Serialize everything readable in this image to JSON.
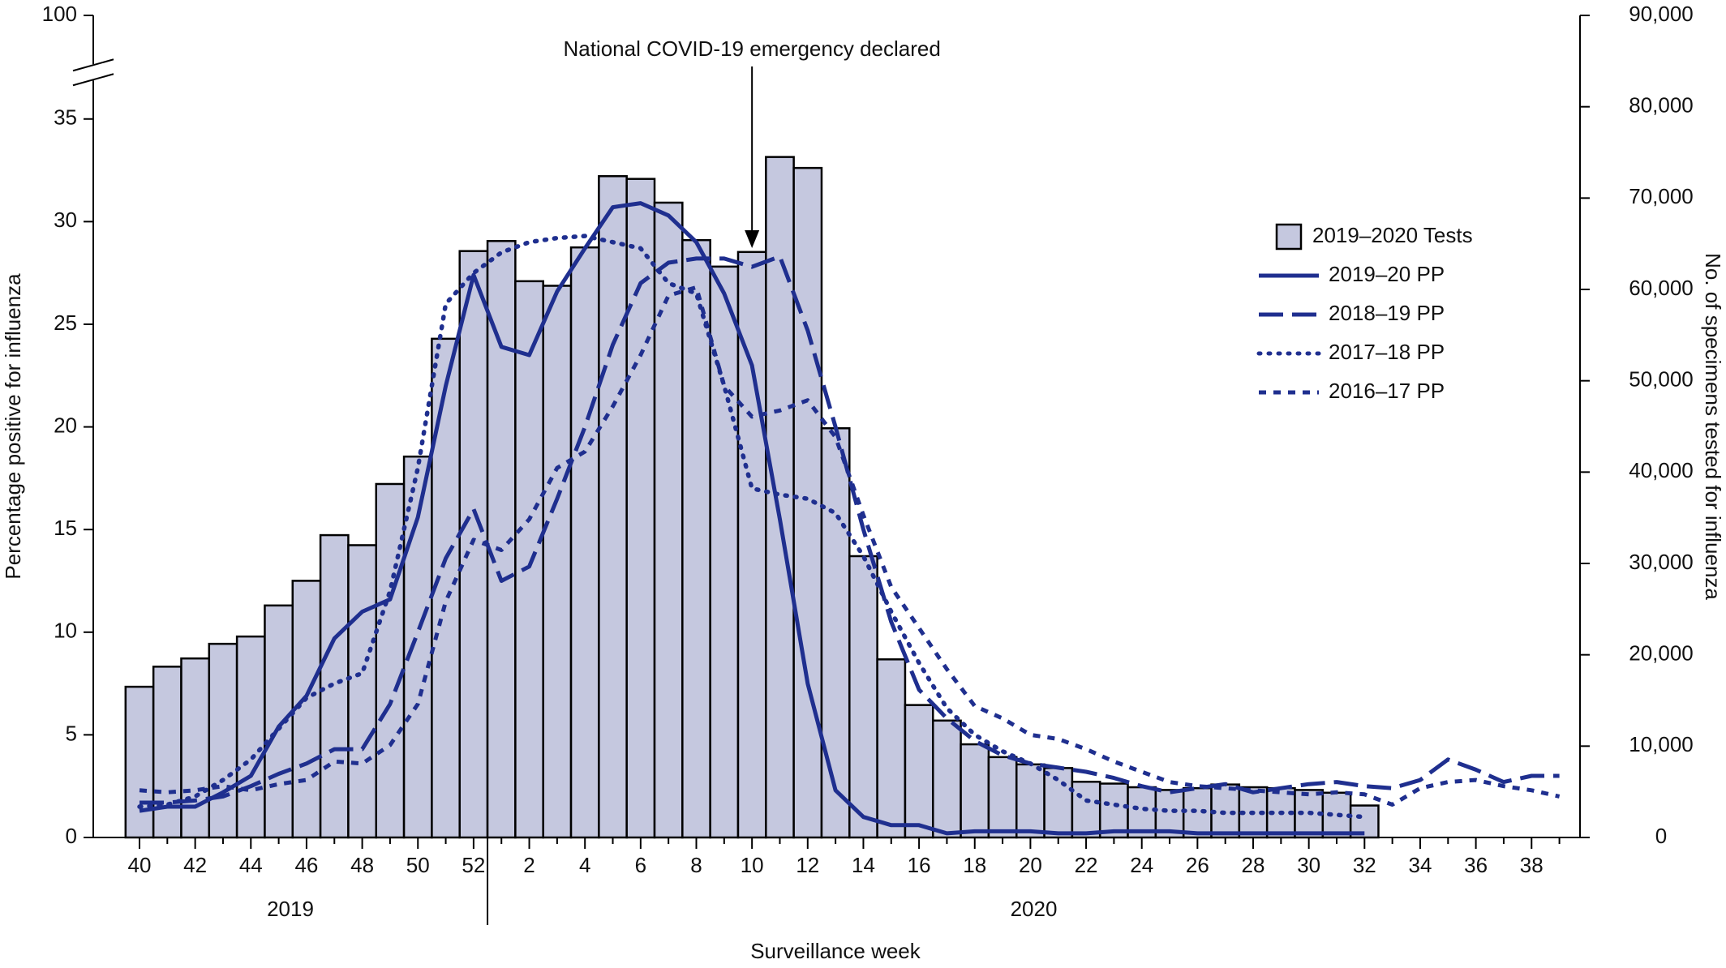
{
  "chart_data": {
    "type": "combo",
    "x_label": "Surveillance week",
    "y_label": "Percentage positive for influenza",
    "y2_label": "No. of specimens tested for influenza",
    "period_labels": [
      "2019",
      "2020"
    ],
    "annotation": {
      "text": "National COVID-19 emergency declared",
      "category": 10
    },
    "categories": [
      40,
      null,
      42,
      null,
      44,
      null,
      46,
      null,
      48,
      null,
      50,
      null,
      52,
      null,
      2,
      null,
      4,
      null,
      6,
      null,
      8,
      null,
      10,
      null,
      12,
      null,
      14,
      null,
      16,
      null,
      18,
      null,
      20,
      null,
      22,
      null,
      24,
      null,
      26,
      null,
      28,
      null,
      30,
      null,
      32,
      null,
      34,
      null,
      36,
      null,
      38,
      null
    ],
    "ylim": [
      0,
      100
    ],
    "yticks": [
      0,
      5,
      10,
      15,
      20,
      25,
      30,
      35,
      100
    ],
    "y_axis_break": true,
    "y2lim": [
      0,
      90000
    ],
    "y2ticks": [
      0,
      {
        "value": 10000,
        "label": "10,000"
      },
      {
        "value": 20000,
        "label": "20,000"
      },
      {
        "value": 30000,
        "label": "30,000"
      },
      {
        "value": 40000,
        "label": "40,000"
      },
      {
        "value": 50000,
        "label": "50,000"
      },
      {
        "value": 60000,
        "label": "60,000"
      },
      {
        "value": 70000,
        "label": "70,000"
      },
      {
        "value": 80000,
        "label": "80,000"
      },
      {
        "value": 90000,
        "label": "90,000"
      }
    ],
    "legend_position": "right",
    "series": [
      {
        "name": "2019–2020 Tests",
        "type": "bar",
        "axis": "y2",
        "color": "#c5c8df",
        "values": [
          16500,
          18700,
          19600,
          21200,
          22000,
          25400,
          28100,
          33100,
          32000,
          38700,
          41700,
          54600,
          64200,
          65300,
          60900,
          60400,
          64600,
          72400,
          72100,
          69500,
          65400,
          62500,
          64100,
          74500,
          73300,
          44800,
          30800,
          19500,
          14500,
          12800,
          10200,
          8800,
          8000,
          7600,
          6100,
          5900,
          5500,
          5200,
          5400,
          5800,
          5500,
          5400,
          5200,
          4900,
          3500,
          null,
          null,
          null,
          null,
          null,
          null,
          null
        ]
      },
      {
        "name": "2019–20 PP",
        "type": "line",
        "line_style": "solid",
        "color": "#1f2f8f",
        "values": [
          1.3,
          1.5,
          1.5,
          2.2,
          3.0,
          5.4,
          6.9,
          9.7,
          11.0,
          11.6,
          15.6,
          22.0,
          27.4,
          23.9,
          23.5,
          26.6,
          28.7,
          30.7,
          30.9,
          30.3,
          29.0,
          26.5,
          23.0,
          15.5,
          7.5,
          2.3,
          1.0,
          0.6,
          0.6,
          0.2,
          0.3,
          0.3,
          0.3,
          0.2,
          0.2,
          0.3,
          0.3,
          0.3,
          0.2,
          0.2,
          0.2,
          0.2,
          0.2,
          0.2,
          0.2,
          null,
          null,
          null,
          null,
          null,
          null,
          null
        ]
      },
      {
        "name": "2018–19 PP",
        "type": "line",
        "line_style": "dashed",
        "color": "#1f2f8f",
        "values": [
          1.7,
          1.7,
          1.8,
          2.0,
          2.5,
          3.1,
          3.6,
          4.3,
          4.3,
          6.5,
          10.0,
          13.6,
          16.0,
          12.5,
          13.2,
          16.5,
          20,
          24,
          27,
          28,
          28.2,
          28.2,
          27.8,
          28.3,
          24.7,
          20,
          15,
          10.5,
          7.2,
          5.8,
          4.7,
          4,
          3.6,
          3.4,
          3.2,
          2.9,
          2.5,
          2.2,
          2.4,
          2.6,
          2.2,
          2.4,
          2.6,
          2.7,
          2.5,
          2.4,
          2.8,
          3.8,
          3.3,
          2.7,
          3.0,
          3.0
        ]
      },
      {
        "name": "2017–18 PP",
        "type": "line",
        "line_style": "dotted",
        "color": "#1f2f8f",
        "values": [
          1.5,
          1.6,
          2.0,
          2.8,
          3.8,
          5.3,
          6.8,
          7.5,
          8.0,
          12,
          18,
          26,
          27.5,
          28.5,
          29,
          29.2,
          29.3,
          29.0,
          28.7,
          27,
          26.5,
          22,
          17,
          16.7,
          16.5,
          15.8,
          13.7,
          11,
          8.5,
          6.3,
          5,
          4.2,
          3.6,
          2.8,
          1.8,
          1.6,
          1.4,
          1.3,
          1.3,
          1.2,
          1.2,
          1.2,
          1.2,
          1.1,
          1.0,
          null,
          null,
          null,
          null,
          null,
          null,
          null
        ]
      },
      {
        "name": "2016–17 PP",
        "type": "line",
        "line_style": "short-dashed",
        "color": "#1f2f8f",
        "values": [
          2.3,
          2.2,
          2.3,
          2.5,
          2.3,
          2.6,
          2.8,
          3.7,
          3.6,
          4.5,
          6.5,
          11.5,
          14.5,
          14,
          15.5,
          18,
          18.8,
          21,
          23.5,
          26.4,
          26.8,
          22,
          20.5,
          20.8,
          21.3,
          19.5,
          15.7,
          12.2,
          10.2,
          8.2,
          6.4,
          5.8,
          5.0,
          4.8,
          4.3,
          3.7,
          3.2,
          2.7,
          2.5,
          2.4,
          2.3,
          2.2,
          2.1,
          2.2,
          2.1,
          1.6,
          2.4,
          2.7,
          2.8,
          2.5,
          2.3,
          2.0
        ]
      }
    ]
  }
}
